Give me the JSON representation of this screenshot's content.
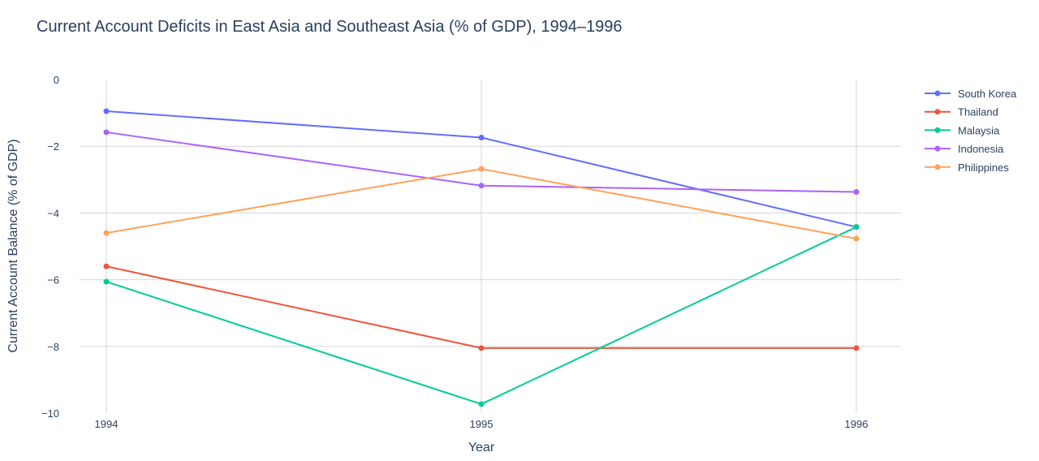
{
  "chart_data": {
    "type": "line",
    "title": "Current Account Deficits in East Asia and Southeast Asia (% of GDP), 1994–1996",
    "xlabel": "Year",
    "ylabel": "Current Account Balance (% of GDP)",
    "x": [
      1994,
      1995,
      1996
    ],
    "x_ticks": [
      "1994",
      "1995",
      "1996"
    ],
    "ylim": [
      -10,
      0
    ],
    "y_ticks": [
      "0",
      "−2",
      "−4",
      "−6",
      "−8",
      "−10"
    ],
    "y_tick_values": [
      0,
      -2,
      -4,
      -6,
      -8,
      -10
    ],
    "grid": true,
    "legend_position": "top-right",
    "series": [
      {
        "name": "South Korea",
        "color": "#636efa",
        "values": [
          -0.95,
          -1.74,
          -4.42
        ]
      },
      {
        "name": "Thailand",
        "color": "#ef553b",
        "values": [
          -5.6,
          -8.05,
          -8.05
        ]
      },
      {
        "name": "Malaysia",
        "color": "#00cc96",
        "values": [
          -6.06,
          -9.73,
          -4.42
        ]
      },
      {
        "name": "Indonesia",
        "color": "#ab63fa",
        "values": [
          -1.58,
          -3.18,
          -3.37
        ]
      },
      {
        "name": "Philippines",
        "color": "#ffa15a",
        "values": [
          -4.6,
          -2.68,
          -4.77
        ]
      }
    ]
  }
}
